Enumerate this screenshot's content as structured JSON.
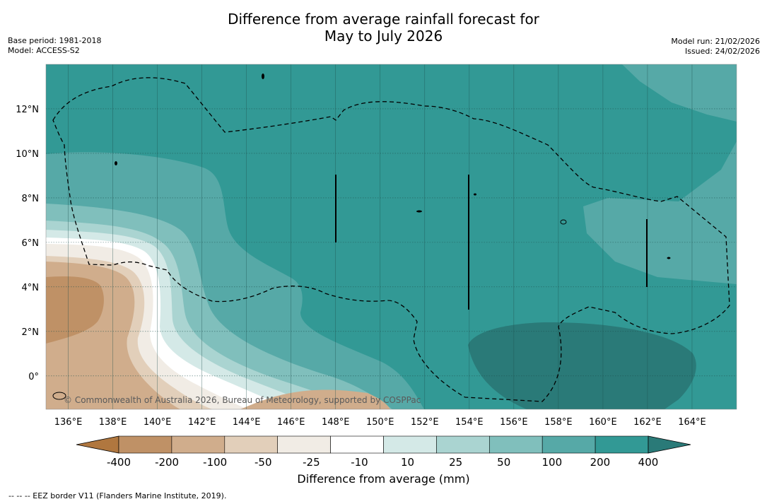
{
  "header": {
    "title_line1": "Difference from average rainfall forecast for",
    "title_line2": "May to July 2026",
    "base_period": "Base period: 1981-2018",
    "model": "Model: ACCESS-S2",
    "model_run": "Model run: 21/02/2026",
    "issued": "Issued: 24/02/2026"
  },
  "map": {
    "lon_range": [
      135,
      166
    ],
    "lat_range": [
      -1.5,
      14
    ],
    "lon_ticks": [
      {
        "value": 136,
        "label": "136°E"
      },
      {
        "value": 138,
        "label": "138°E"
      },
      {
        "value": 140,
        "label": "140°E"
      },
      {
        "value": 142,
        "label": "142°E"
      },
      {
        "value": 144,
        "label": "144°E"
      },
      {
        "value": 146,
        "label": "146°E"
      },
      {
        "value": 148,
        "label": "148°E"
      },
      {
        "value": 150,
        "label": "150°E"
      },
      {
        "value": 152,
        "label": "152°E"
      },
      {
        "value": 154,
        "label": "154°E"
      },
      {
        "value": 156,
        "label": "156°E"
      },
      {
        "value": 158,
        "label": "158°E"
      },
      {
        "value": 160,
        "label": "160°E"
      },
      {
        "value": 162,
        "label": "162°E"
      },
      {
        "value": 164,
        "label": "164°E"
      }
    ],
    "lat_ticks": [
      {
        "value": 0,
        "label": "0°"
      },
      {
        "value": 2,
        "label": "2°N"
      },
      {
        "value": 4,
        "label": "4°N"
      },
      {
        "value": 6,
        "label": "6°N"
      },
      {
        "value": 8,
        "label": "8°N"
      },
      {
        "value": 10,
        "label": "10°N"
      },
      {
        "value": 12,
        "label": "12°N"
      }
    ],
    "copyright": "© Commonwealth of Australia 2026, Bureau of Meteorology, supported by COSPPac"
  },
  "colorbar": {
    "title": "Difference from average (mm)",
    "labels": [
      "-400",
      "-200",
      "-100",
      "-50",
      "-25",
      "-10",
      "10",
      "25",
      "50",
      "100",
      "200",
      "400"
    ],
    "colors": [
      "#b0773f",
      "#bf9166",
      "#d0ad8c",
      "#e2cfba",
      "#f1ece5",
      "#ffffff",
      "#d4e9e7",
      "#aad4d1",
      "#80bfbc",
      "#56a9a7",
      "#329995",
      "#2a7a78"
    ]
  },
  "footer": {
    "note": "--  --  -- EEZ border V11 (Flanders Marine Institute, 2019)."
  }
}
